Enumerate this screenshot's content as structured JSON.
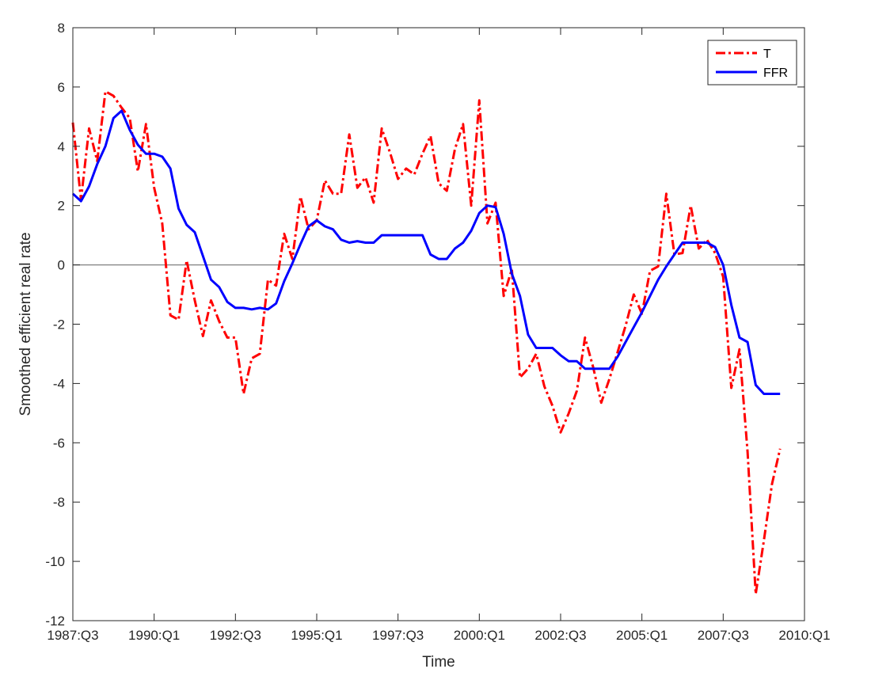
{
  "chart_data": {
    "type": "line",
    "xlabel": "Time",
    "ylabel": "Smoothed efficient real rate",
    "x_start": "1987:Q3",
    "x_end": "2010:Q1",
    "x_ticks": [
      "1987:Q3",
      "1990:Q1",
      "1992:Q3",
      "1995:Q1",
      "1997:Q3",
      "2000:Q1",
      "2002:Q3",
      "2005:Q1",
      "2007:Q3",
      "2010:Q1"
    ],
    "ylim": [
      -12,
      8
    ],
    "y_ticks": [
      -12,
      -10,
      -8,
      -6,
      -4,
      -2,
      0,
      2,
      4,
      6,
      8
    ],
    "zero_line": true,
    "grid": false,
    "legend_position": "top-right",
    "series": [
      {
        "name": "T",
        "color": "#ff0000",
        "style": "dash-dot",
        "points": [
          [
            "1987:Q3",
            4.8
          ],
          [
            "1987:Q4",
            2.2
          ],
          [
            "1988:Q1",
            4.6
          ],
          [
            "1988:Q2",
            3.5
          ],
          [
            "1988:Q3",
            5.85
          ],
          [
            "1988:Q4",
            5.7
          ],
          [
            "1989:Q1",
            5.3
          ],
          [
            "1989:Q2",
            4.95
          ],
          [
            "1989:Q3",
            3.15
          ],
          [
            "1989:Q4",
            4.75
          ],
          [
            "1990:Q1",
            2.6
          ],
          [
            "1990:Q2",
            1.4
          ],
          [
            "1990:Q3",
            -1.7
          ],
          [
            "1990:Q4",
            -1.85
          ],
          [
            "1991:Q1",
            0.15
          ],
          [
            "1991:Q2",
            -1.2
          ],
          [
            "1991:Q3",
            -2.4
          ],
          [
            "1991:Q4",
            -1.2
          ],
          [
            "1992:Q1",
            -1.9
          ],
          [
            "1992:Q2",
            -2.45
          ],
          [
            "1992:Q3",
            -2.45
          ],
          [
            "1992:Q4",
            -4.35
          ],
          [
            "1993:Q1",
            -3.15
          ],
          [
            "1993:Q2",
            -3.0
          ],
          [
            "1993:Q3",
            -0.5
          ],
          [
            "1993:Q4",
            -0.7
          ],
          [
            "1994:Q1",
            1.05
          ],
          [
            "1994:Q2",
            0.2
          ],
          [
            "1994:Q3",
            2.3
          ],
          [
            "1994:Q4",
            1.2
          ],
          [
            "1995:Q1",
            1.5
          ],
          [
            "1995:Q2",
            2.85
          ],
          [
            "1995:Q3",
            2.4
          ],
          [
            "1995:Q4",
            2.4
          ],
          [
            "1996:Q1",
            4.4
          ],
          [
            "1996:Q2",
            2.6
          ],
          [
            "1996:Q3",
            2.95
          ],
          [
            "1996:Q4",
            2.1
          ],
          [
            "1997:Q1",
            4.6
          ],
          [
            "1997:Q2",
            3.8
          ],
          [
            "1997:Q3",
            2.9
          ],
          [
            "1997:Q4",
            3.25
          ],
          [
            "1998:Q1",
            3.05
          ],
          [
            "1998:Q2",
            3.75
          ],
          [
            "1998:Q3",
            4.35
          ],
          [
            "1998:Q4",
            2.75
          ],
          [
            "1999:Q1",
            2.5
          ],
          [
            "1999:Q2",
            3.9
          ],
          [
            "1999:Q3",
            4.75
          ],
          [
            "1999:Q4",
            2.0
          ],
          [
            "2000:Q1",
            5.55
          ],
          [
            "2000:Q2",
            1.4
          ],
          [
            "2000:Q3",
            2.1
          ],
          [
            "2000:Q4",
            -1.05
          ],
          [
            "2001:Q1",
            -0.15
          ],
          [
            "2001:Q2",
            -3.8
          ],
          [
            "2001:Q3",
            -3.5
          ],
          [
            "2001:Q4",
            -3.0
          ],
          [
            "2002:Q1",
            -4.1
          ],
          [
            "2002:Q2",
            -4.75
          ],
          [
            "2002:Q3",
            -5.65
          ],
          [
            "2002:Q4",
            -5.0
          ],
          [
            "2003:Q1",
            -4.25
          ],
          [
            "2003:Q2",
            -2.45
          ],
          [
            "2003:Q3",
            -3.45
          ],
          [
            "2003:Q4",
            -4.65
          ],
          [
            "2004:Q1",
            -3.85
          ],
          [
            "2004:Q2",
            -2.95
          ],
          [
            "2004:Q3",
            -2.05
          ],
          [
            "2004:Q4",
            -1.0
          ],
          [
            "2005:Q1",
            -1.65
          ],
          [
            "2005:Q2",
            -0.2
          ],
          [
            "2005:Q3",
            -0.05
          ],
          [
            "2005:Q4",
            2.4
          ],
          [
            "2006:Q1",
            0.35
          ],
          [
            "2006:Q2",
            0.4
          ],
          [
            "2006:Q3",
            2.0
          ],
          [
            "2006:Q4",
            0.55
          ],
          [
            "2007:Q1",
            0.85
          ],
          [
            "2007:Q2",
            0.4
          ],
          [
            "2007:Q3",
            -0.4
          ],
          [
            "2007:Q4",
            -4.15
          ],
          [
            "2008:Q1",
            -2.85
          ],
          [
            "2008:Q2",
            -6.3
          ],
          [
            "2008:Q3",
            -11.1
          ],
          [
            "2008:Q4",
            -9.3
          ],
          [
            "2009:Q1",
            -7.4
          ],
          [
            "2009:Q2",
            -6.2
          ]
        ]
      },
      {
        "name": "FFR",
        "color": "#0000ff",
        "style": "solid",
        "points": [
          [
            "1987:Q3",
            2.4
          ],
          [
            "1987:Q4",
            2.15
          ],
          [
            "1988:Q1",
            2.65
          ],
          [
            "1988:Q2",
            3.4
          ],
          [
            "1988:Q3",
            4.0
          ],
          [
            "1988:Q4",
            4.95
          ],
          [
            "1989:Q1",
            5.2
          ],
          [
            "1989:Q2",
            4.55
          ],
          [
            "1989:Q3",
            4.05
          ],
          [
            "1989:Q4",
            3.75
          ],
          [
            "1990:Q1",
            3.75
          ],
          [
            "1990:Q2",
            3.65
          ],
          [
            "1990:Q3",
            3.25
          ],
          [
            "1990:Q4",
            1.9
          ],
          [
            "1991:Q1",
            1.35
          ],
          [
            "1991:Q2",
            1.1
          ],
          [
            "1991:Q3",
            0.3
          ],
          [
            "1991:Q4",
            -0.5
          ],
          [
            "1992:Q1",
            -0.75
          ],
          [
            "1992:Q2",
            -1.25
          ],
          [
            "1992:Q3",
            -1.45
          ],
          [
            "1992:Q4",
            -1.45
          ],
          [
            "1993:Q1",
            -1.5
          ],
          [
            "1993:Q2",
            -1.45
          ],
          [
            "1993:Q3",
            -1.5
          ],
          [
            "1993:Q4",
            -1.3
          ],
          [
            "1994:Q1",
            -0.55
          ],
          [
            "1994:Q2",
            0.05
          ],
          [
            "1994:Q3",
            0.7
          ],
          [
            "1994:Q4",
            1.3
          ],
          [
            "1995:Q1",
            1.5
          ],
          [
            "1995:Q2",
            1.3
          ],
          [
            "1995:Q3",
            1.2
          ],
          [
            "1995:Q4",
            0.85
          ],
          [
            "1996:Q1",
            0.75
          ],
          [
            "1996:Q2",
            0.8
          ],
          [
            "1996:Q3",
            0.75
          ],
          [
            "1996:Q4",
            0.75
          ],
          [
            "1997:Q1",
            1.0
          ],
          [
            "1997:Q2",
            1.0
          ],
          [
            "1997:Q3",
            1.0
          ],
          [
            "1997:Q4",
            1.0
          ],
          [
            "1998:Q1",
            1.0
          ],
          [
            "1998:Q2",
            1.0
          ],
          [
            "1998:Q3",
            0.35
          ],
          [
            "1998:Q4",
            0.2
          ],
          [
            "1999:Q1",
            0.2
          ],
          [
            "1999:Q2",
            0.55
          ],
          [
            "1999:Q3",
            0.75
          ],
          [
            "1999:Q4",
            1.15
          ],
          [
            "2000:Q1",
            1.75
          ],
          [
            "2000:Q2",
            2.0
          ],
          [
            "2000:Q3",
            1.95
          ],
          [
            "2000:Q4",
            1.05
          ],
          [
            "2001:Q1",
            -0.3
          ],
          [
            "2001:Q2",
            -1.05
          ],
          [
            "2001:Q3",
            -2.35
          ],
          [
            "2001:Q4",
            -2.8
          ],
          [
            "2002:Q1",
            -2.8
          ],
          [
            "2002:Q2",
            -2.8
          ],
          [
            "2002:Q3",
            -3.05
          ],
          [
            "2002:Q4",
            -3.25
          ],
          [
            "2003:Q1",
            -3.25
          ],
          [
            "2003:Q2",
            -3.5
          ],
          [
            "2003:Q3",
            -3.5
          ],
          [
            "2003:Q4",
            -3.5
          ],
          [
            "2004:Q1",
            -3.5
          ],
          [
            "2004:Q2",
            -3.1
          ],
          [
            "2004:Q3",
            -2.6
          ],
          [
            "2004:Q4",
            -2.1
          ],
          [
            "2005:Q1",
            -1.6
          ],
          [
            "2005:Q2",
            -1.05
          ],
          [
            "2005:Q3",
            -0.5
          ],
          [
            "2005:Q4",
            -0.05
          ],
          [
            "2006:Q1",
            0.35
          ],
          [
            "2006:Q2",
            0.75
          ],
          [
            "2006:Q3",
            0.75
          ],
          [
            "2006:Q4",
            0.75
          ],
          [
            "2007:Q1",
            0.75
          ],
          [
            "2007:Q2",
            0.6
          ],
          [
            "2007:Q3",
            0.0
          ],
          [
            "2007:Q4",
            -1.35
          ],
          [
            "2008:Q1",
            -2.45
          ],
          [
            "2008:Q2",
            -2.6
          ],
          [
            "2008:Q3",
            -4.05
          ],
          [
            "2008:Q4",
            -4.35
          ],
          [
            "2009:Q1",
            -4.35
          ],
          [
            "2009:Q2",
            -4.35
          ]
        ]
      }
    ]
  }
}
